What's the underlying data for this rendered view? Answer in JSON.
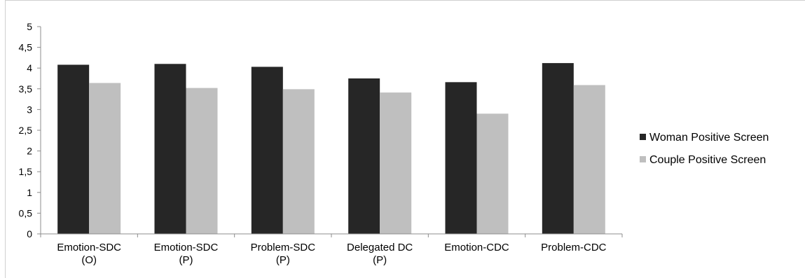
{
  "chart_data": {
    "type": "bar",
    "categories": [
      [
        "Emotion-SDC",
        "(O)"
      ],
      [
        "Emotion-SDC",
        "(P)"
      ],
      [
        "Problem-SDC",
        "(P)"
      ],
      [
        "Delegated DC",
        "(P)"
      ],
      [
        "Emotion-CDC"
      ],
      [
        "Problem-CDC"
      ]
    ],
    "series": [
      {
        "name": "Woman Positive Screen",
        "color": "#262626",
        "values": [
          4.08,
          4.1,
          4.03,
          3.75,
          3.66,
          4.12
        ]
      },
      {
        "name": "Couple Positive Screen",
        "color": "#bfbfbf",
        "values": [
          3.64,
          3.52,
          3.49,
          3.41,
          2.9,
          3.59
        ]
      }
    ],
    "y_ticks": [
      "0",
      "0,5",
      "1",
      "1,5",
      "2",
      "2,5",
      "3",
      "3,5",
      "4",
      "4,5",
      "5"
    ],
    "ylim": [
      0,
      5
    ],
    "grid": false,
    "legend_position": "right"
  }
}
